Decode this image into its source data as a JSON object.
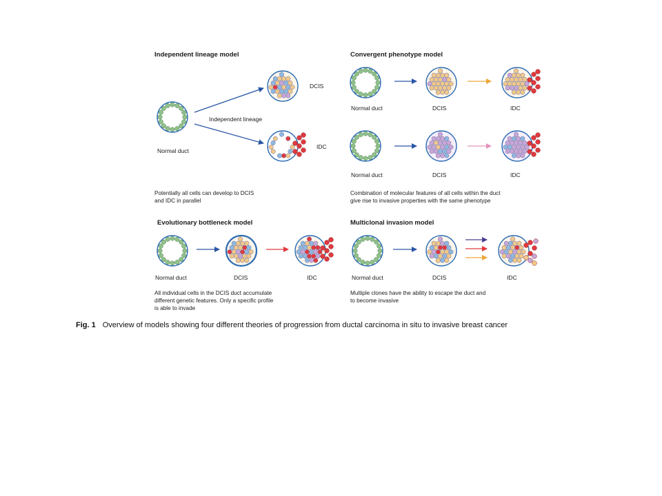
{
  "colors": {
    "duct_outline": "#2f6db5",
    "normal_cell": "#8fc28a",
    "orange_cell": "#f1c98a",
    "blue_cell": "#8fb8e0",
    "purple_cell": "#c9a7d8",
    "red_cell": "#e0393f",
    "arrow_blue": "#2a56a6",
    "arrow_orange": "#f0a63a",
    "arrow_pink": "#e394bd",
    "arrow_red": "#e0393f",
    "arrow_purple": "#4a3d8f"
  },
  "panels": {
    "independent": {
      "heading": "Independent lineage model",
      "dcis": "DCIS",
      "idc": "IDC",
      "lineage": "Independent lineage",
      "normal": "Normal duct",
      "desc_line1": "Potentially all cells can develop to DCIS",
      "desc_line2": "and IDC in parallel"
    },
    "convergent": {
      "heading": "Convergent phenotype model",
      "normal_top": "Normal duct",
      "dcis_top": "DCIS",
      "idc_top": "IDC",
      "normal_bottom": "Normal duct",
      "dcis_bottom": "DCIS",
      "idc_bottom": "IDC",
      "desc_line1": "Combination of molecular features of all cells within the duct",
      "desc_line2": "give rise to invasive properties with the same phenotype"
    },
    "bottleneck": {
      "heading": "Evolutionary bottleneck model",
      "normal": "Normal duct",
      "dcis": "DCIS",
      "idc": "IDC",
      "desc_line1": "All individual cells in the DCIS duct accumulate",
      "desc_line2": "different genetic features. Only a specific profile",
      "desc_line3": "is able to invade"
    },
    "multiclonal": {
      "heading": "Multiclonal invasion model",
      "normal": "Normal duct",
      "dcis": "DCIS",
      "idc": "IDC",
      "desc_line1": "Multiple clones have the ability to escape the duct and",
      "desc_line2": "to become invasive"
    }
  },
  "caption": {
    "label": "Fig. 1",
    "text": "Overview of models showing four different theories of progression from ductal carcinoma in situ to invasive breast cancer"
  }
}
